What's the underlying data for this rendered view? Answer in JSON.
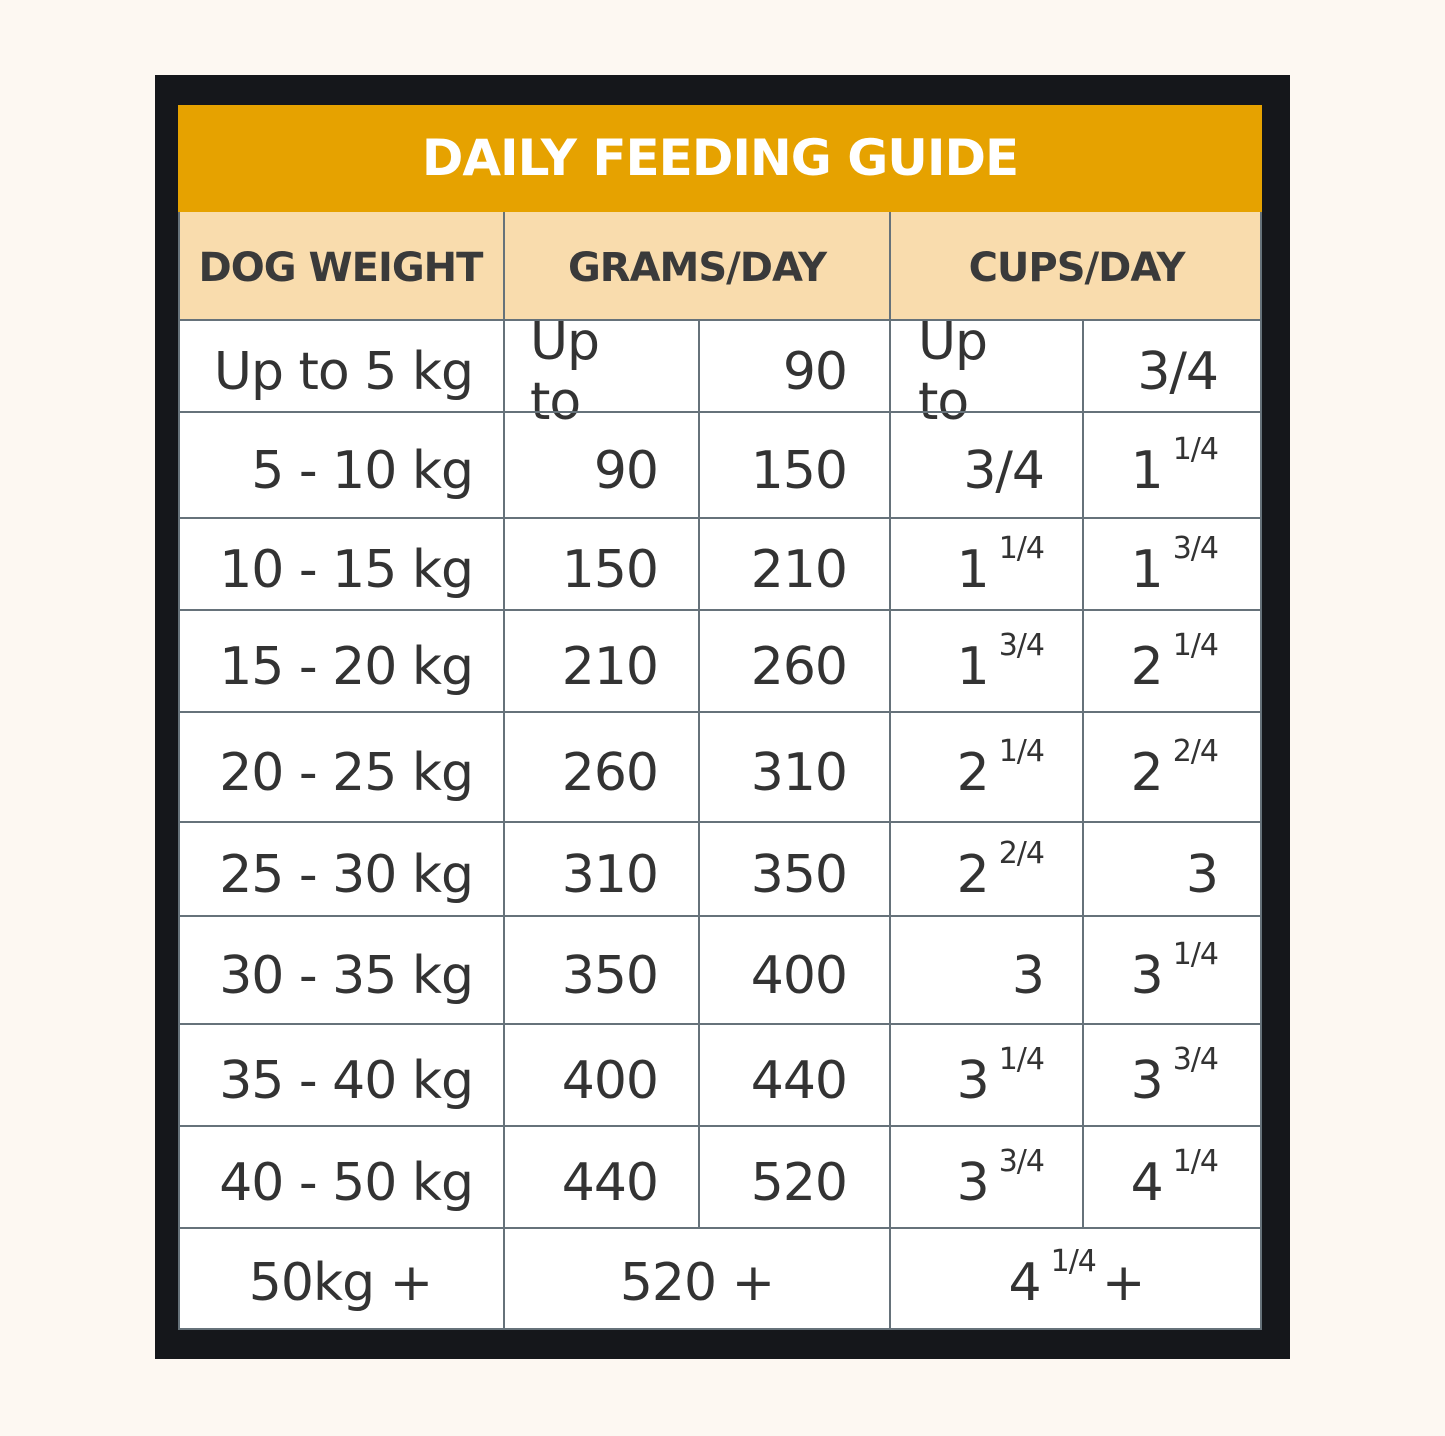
{
  "title": "DAILY FEEDING GUIDE",
  "headers": [
    "DOG WEIGHT",
    "GRAMS/DAY",
    "CUPS/DAY"
  ],
  "rows": [
    {
      "weight": "Up to 5 kg",
      "g_from": "Up to",
      "g_to": "90",
      "c_from": "Up to",
      "c_from_frac": "",
      "c_to": "3/4",
      "c_to_frac": ""
    },
    {
      "weight": "5 - 10 kg",
      "g_from": "90",
      "g_to": "150",
      "c_from": "3/4",
      "c_from_frac": "",
      "c_to": "1",
      "c_to_frac": "1/4"
    },
    {
      "weight": "10 - 15 kg",
      "g_from": "150",
      "g_to": "210",
      "c_from": "1",
      "c_from_frac": "1/4",
      "c_to": "1",
      "c_to_frac": "3/4"
    },
    {
      "weight": "15 - 20 kg",
      "g_from": "210",
      "g_to": "260",
      "c_from": "1",
      "c_from_frac": "3/4",
      "c_to": "2",
      "c_to_frac": "1/4"
    },
    {
      "weight": "20 - 25 kg",
      "g_from": "260",
      "g_to": "310",
      "c_from": "2",
      "c_from_frac": "1/4",
      "c_to": "2",
      "c_to_frac": "2/4"
    },
    {
      "weight": "25 - 30 kg",
      "g_from": "310",
      "g_to": "350",
      "c_from": "2",
      "c_from_frac": "2/4",
      "c_to": "3",
      "c_to_frac": ""
    },
    {
      "weight": "30 - 35 kg",
      "g_from": "350",
      "g_to": "400",
      "c_from": "3",
      "c_from_frac": "",
      "c_to": "3",
      "c_to_frac": "1/4"
    },
    {
      "weight": "35 - 40 kg",
      "g_from": "400",
      "g_to": "440",
      "c_from": "3",
      "c_from_frac": "1/4",
      "c_to": "3",
      "c_to_frac": "3/4"
    },
    {
      "weight": "40 - 50 kg",
      "g_from": "440",
      "g_to": "520",
      "c_from": "3",
      "c_from_frac": "3/4",
      "c_to": "4",
      "c_to_frac": "1/4"
    }
  ],
  "last_row": {
    "weight": "50kg +",
    "grams": "520 +",
    "cups": "4",
    "cups_frac": "1/4",
    "cups_suffix": "+"
  }
}
